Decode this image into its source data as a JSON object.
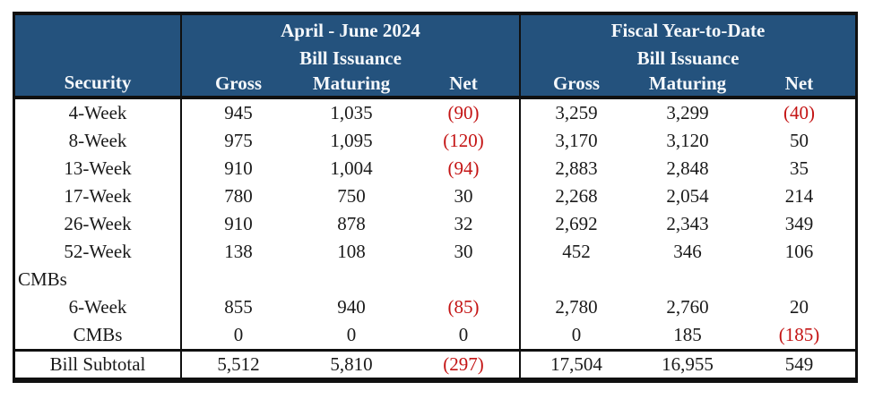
{
  "table": {
    "security_header": "Security",
    "sections": [
      {
        "title": "April - June 2024",
        "subtitle": "Bill Issuance",
        "columns": [
          "Gross",
          "Maturing",
          "Net"
        ]
      },
      {
        "title": "Fiscal Year-to-Date",
        "subtitle": "Bill Issuance",
        "columns": [
          "Gross",
          "Maturing",
          "Net"
        ]
      }
    ],
    "rows": [
      {
        "label": "4-Week",
        "cells": [
          "945",
          "1,035",
          "(90)",
          "3,259",
          "3,299",
          "(40)"
        ]
      },
      {
        "label": "8-Week",
        "cells": [
          "975",
          "1,095",
          "(120)",
          "3,170",
          "3,120",
          "50"
        ]
      },
      {
        "label": "13-Week",
        "cells": [
          "910",
          "1,004",
          "(94)",
          "2,883",
          "2,848",
          "35"
        ]
      },
      {
        "label": "17-Week",
        "cells": [
          "780",
          "750",
          "30",
          "2,268",
          "2,054",
          "214"
        ]
      },
      {
        "label": "26-Week",
        "cells": [
          "910",
          "878",
          "32",
          "2,692",
          "2,343",
          "349"
        ]
      },
      {
        "label": "52-Week",
        "cells": [
          "138",
          "108",
          "30",
          "452",
          "346",
          "106"
        ]
      },
      {
        "label": "CMBs",
        "cells": [
          "",
          "",
          "",
          "",
          "",
          ""
        ]
      },
      {
        "label": "6-Week",
        "cells": [
          "855",
          "940",
          "(85)",
          "2,780",
          "2,760",
          "20"
        ]
      },
      {
        "label": "CMBs",
        "cells": [
          "0",
          "0",
          "0",
          "0",
          "185",
          "(185)"
        ]
      }
    ],
    "subtotal": {
      "label": "Bill Subtotal",
      "cells": [
        "5,512",
        "5,810",
        "(297)",
        "17,504",
        "16,955",
        "549"
      ]
    }
  },
  "colors": {
    "header_bg": "#24527D",
    "header_text": "#F5F8FB",
    "body_text": "#1A1A1A",
    "border": "#101010",
    "negative": "#C41414"
  }
}
